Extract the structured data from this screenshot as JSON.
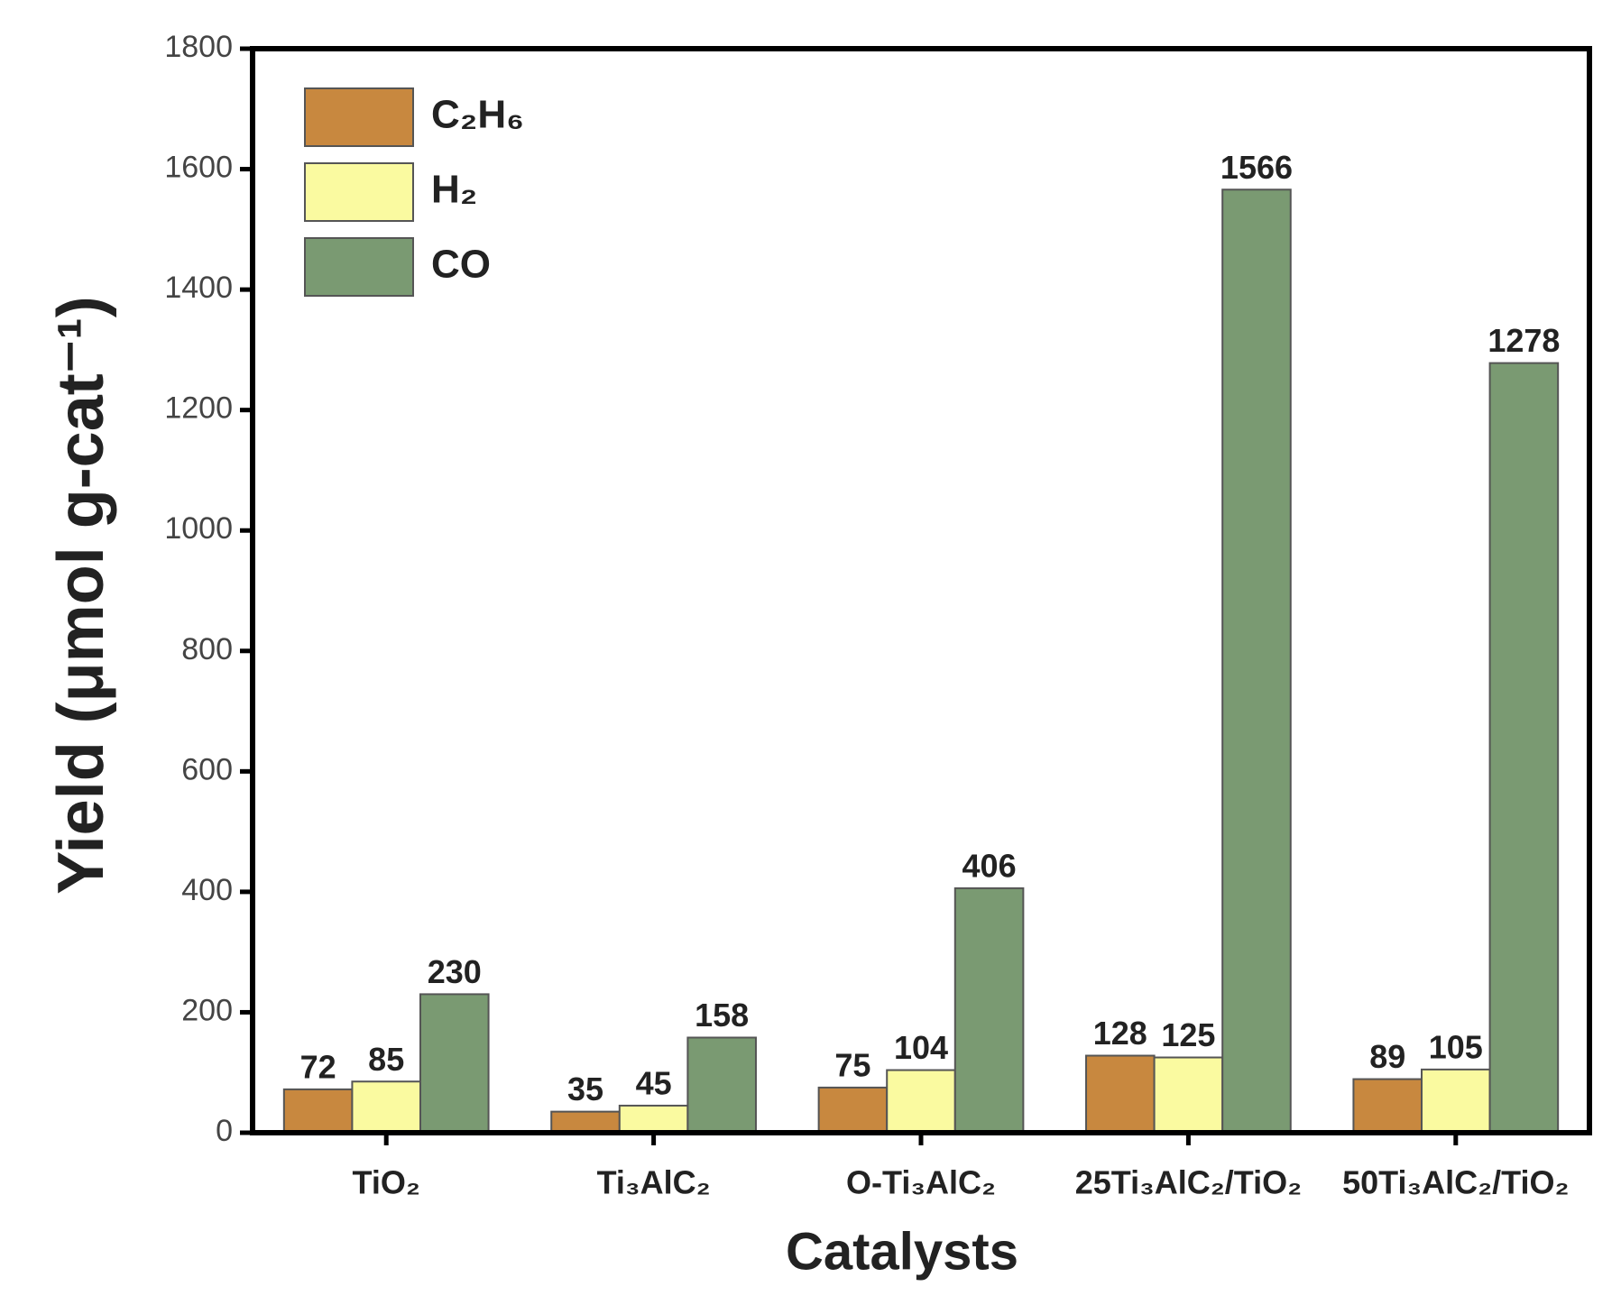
{
  "chart_data": {
    "type": "bar",
    "y_label": "Yield (μmol g-cat⁻¹)",
    "x_label": "Catalysts",
    "categories": [
      "TiO₂",
      "Ti₃AlC₂",
      "O-Ti₃AlC₂",
      "25Ti₃AlC₂/TiO₂",
      "50Ti₃AlC₂/TiO₂"
    ],
    "series": [
      {
        "name": "C₂H₆",
        "color": "#c8883f",
        "values": [
          72,
          35,
          75,
          128,
          89
        ]
      },
      {
        "name": "H₂",
        "color": "#fafaa0",
        "values": [
          85,
          45,
          104,
          125,
          105
        ]
      },
      {
        "name": "CO",
        "color": "#7a9a72",
        "values": [
          230,
          158,
          406,
          1566,
          1278
        ]
      }
    ],
    "ylim": [
      0,
      1800
    ],
    "yticks": [
      0,
      200,
      400,
      600,
      800,
      1000,
      1200,
      1400,
      1600,
      1800
    ],
    "legend": "upper left",
    "grid": false
  }
}
